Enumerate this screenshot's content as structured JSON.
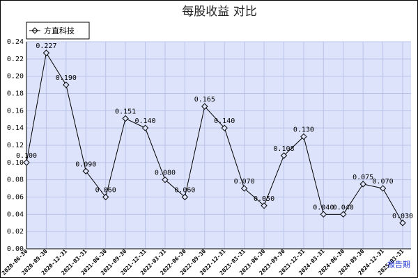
{
  "chart_data": {
    "type": "line",
    "title": "每股收益  对比",
    "xlabel": "",
    "ylabel": "",
    "ylim": [
      0,
      0.24
    ],
    "yticks": [
      "0.00",
      "0.02",
      "0.04",
      "0.06",
      "0.08",
      "0.10",
      "0.12",
      "0.14",
      "0.16",
      "0.18",
      "0.20",
      "0.22",
      "0.24"
    ],
    "grid": true,
    "legend_position": "top-left",
    "categories": [
      "2020-06-30",
      "2020-09-30",
      "2020-12-31",
      "2021-03-31",
      "2021-06-30",
      "2021-09-30",
      "2021-12-31",
      "2022-03-31",
      "2022-06-30",
      "2022-09-30",
      "2022-12-31",
      "2023-03-31",
      "2023-06-30",
      "2023-09-30",
      "2023-12-31",
      "2024-03-31",
      "2024-06-30",
      "2024-09-30",
      "2024-12-31",
      "2025-03-31"
    ],
    "series": [
      {
        "name": "方直科技",
        "values": [
          0.1,
          0.227,
          0.19,
          0.09,
          0.06,
          0.151,
          0.14,
          0.08,
          0.06,
          0.165,
          0.14,
          0.07,
          0.05,
          0.108,
          0.13,
          0.04,
          0.04,
          0.075,
          0.07,
          0.03
        ],
        "labels": [
          "0.100",
          "0.227",
          "0.190",
          "0.090",
          "0.060",
          "0.151",
          "0.140",
          "0.080",
          "0.060",
          "0.165",
          "0.140",
          "0.070",
          "0.050",
          "0.108",
          "0.130",
          "0.040",
          "0.040",
          "0.075",
          "0.070",
          "0.030"
        ]
      }
    ],
    "period_label": "报告期",
    "colors": {
      "plot_bg": "#dde3fa",
      "grid": "#b9c3e8",
      "line": "#000000",
      "period_text": "#1a2fd0"
    }
  }
}
